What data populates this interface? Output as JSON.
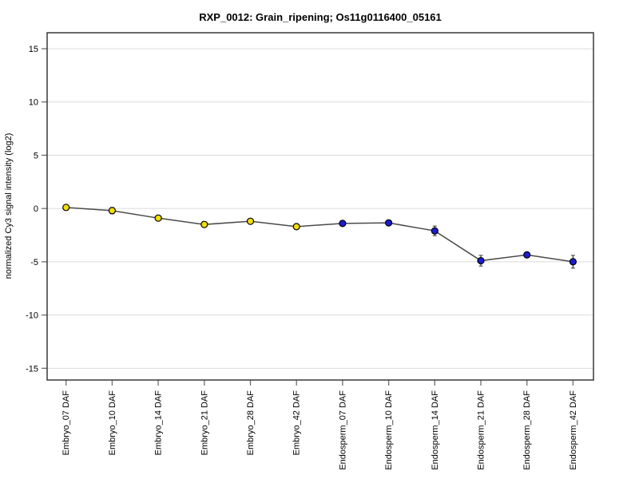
{
  "title": "RXP_0012: Grain_ripening; Os11g0116400_05161",
  "chart_data": {
    "type": "line",
    "title": "RXP_0012: Grain_ripening; Os11g0116400_05161",
    "xlabel": "",
    "ylabel": "normalized Cy3 signal intensity (log2)",
    "ylim": [
      -16.1,
      16.5
    ],
    "yticks": [
      15,
      10,
      5,
      0,
      -5,
      -10,
      -15
    ],
    "grid": true,
    "legend_position": "none",
    "categories": [
      "Embryo_07 DAF",
      "Embryo_10 DAF",
      "Embryo_14 DAF",
      "Embryo_21 DAF",
      "Embryo_28 DAF",
      "Embryo_42 DAF",
      "Endosperm_07 DAF",
      "Endosperm_10 DAF",
      "Endosperm_14 DAF",
      "Endosperm_21 DAF",
      "Endosperm_28 DAF",
      "Endosperm_42 DAF"
    ],
    "series": [
      {
        "name": "normalized Cy3 signal intensity (log2)",
        "values": [
          0.1,
          -0.2,
          -0.9,
          -1.5,
          -1.2,
          -1.7,
          -1.4,
          -1.35,
          -2.1,
          -4.9,
          -4.35,
          -5.0
        ],
        "errors": [
          0.15,
          0.3,
          0.2,
          0.25,
          0.15,
          0.2,
          0.15,
          0.25,
          0.45,
          0.5,
          0.1,
          0.6
        ]
      }
    ],
    "point_groups": [
      {
        "name": "Embryo",
        "indices": [
          0,
          1,
          2,
          3,
          4,
          5
        ],
        "fill": "#F2DE00"
      },
      {
        "name": "Endosperm",
        "indices": [
          6,
          7,
          8,
          9,
          10,
          11
        ],
        "fill": "#1C1CD0"
      }
    ],
    "colors": {
      "line": "#4A4A4A",
      "marker_stroke": "#000000",
      "error_bar": "#3A3A3A",
      "gridline": "#DBDBDB",
      "plot_border": "#2B2B2B",
      "tick": "#6E6E6E",
      "background": "#FFFFFF"
    }
  }
}
